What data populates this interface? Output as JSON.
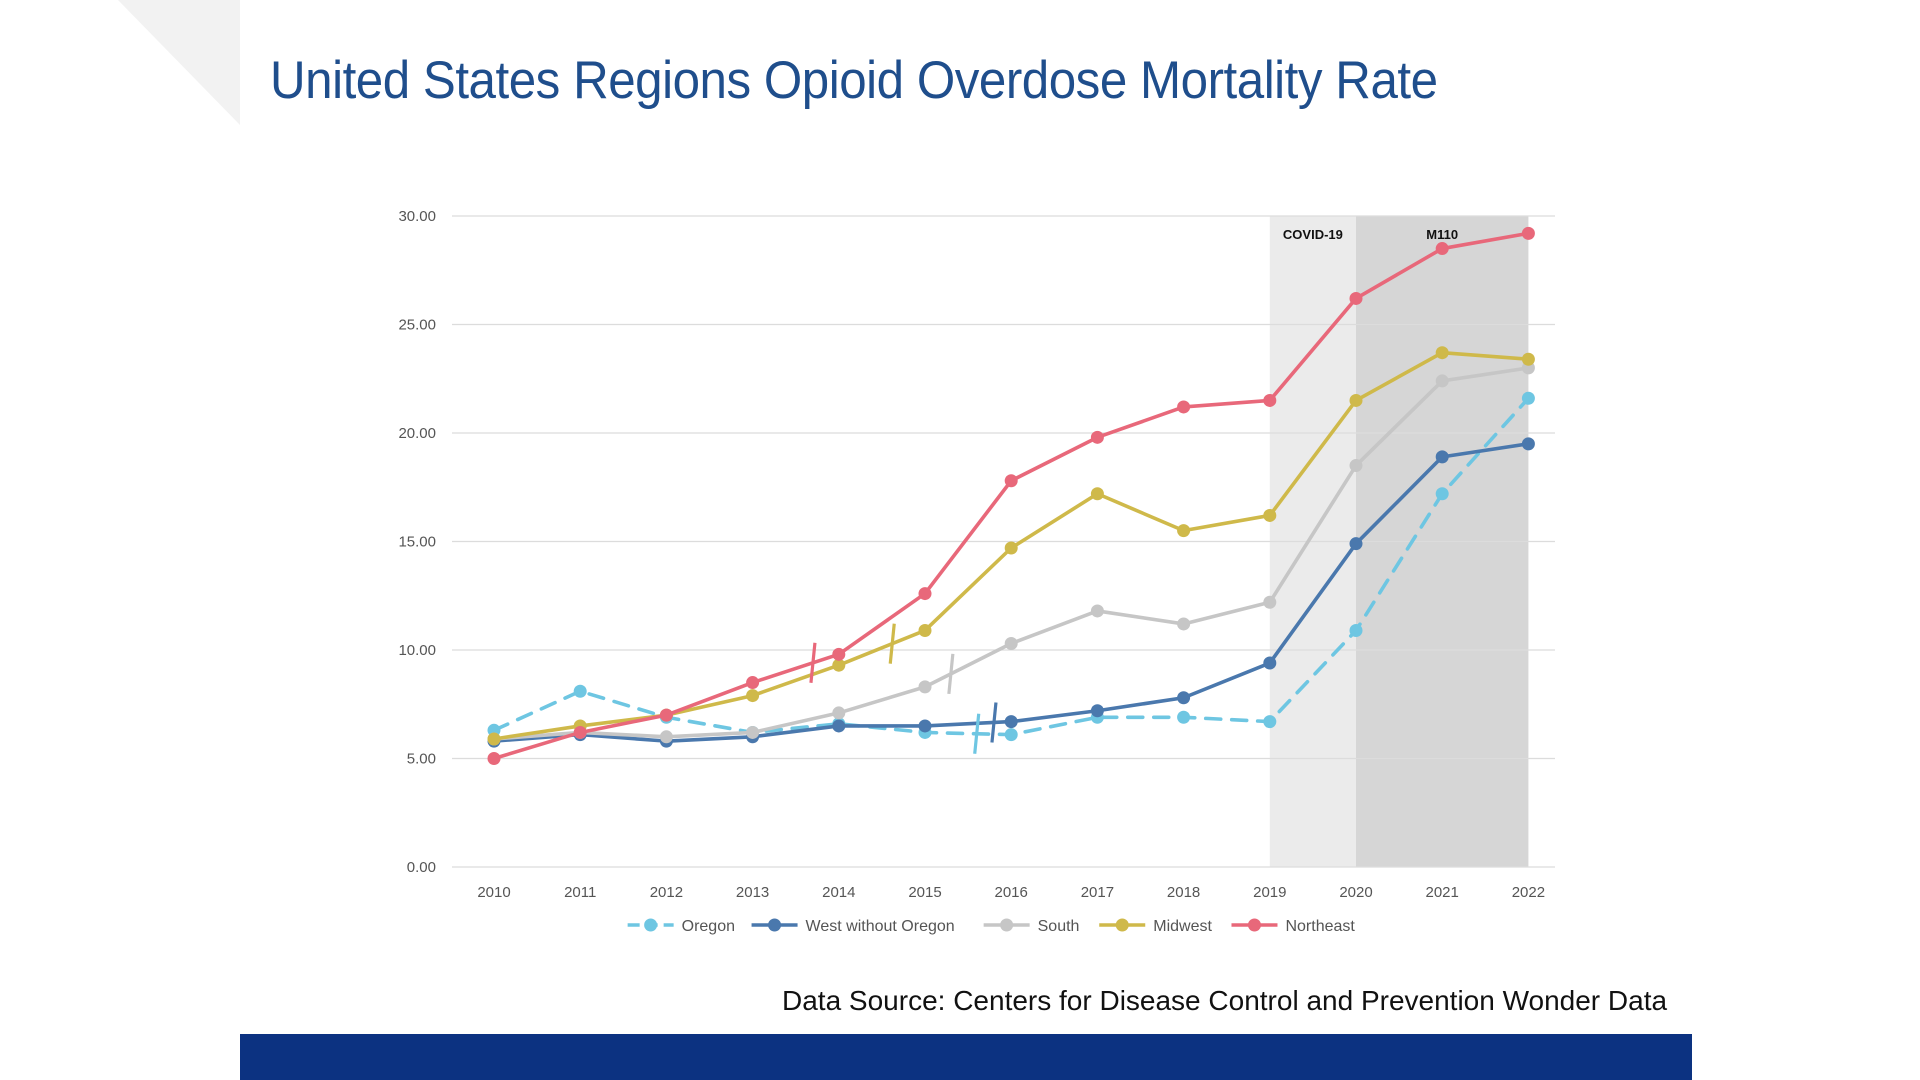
{
  "page": {
    "title": "United States Regions Opioid Overdose Mortality Rate"
  },
  "source_note": "Data Source: Centers for Disease Control and Prevention Wonder Data",
  "colors": {
    "title": "#1f4e8c",
    "footer_bar": "#0c3281",
    "band_covid": "#ebebeb",
    "band_m110": "#d6d6d6"
  },
  "chart_data": {
    "type": "line",
    "title": "",
    "xlabel": "",
    "ylabel": "",
    "x": [
      "2010",
      "2011",
      "2012",
      "2013",
      "2014",
      "2015",
      "2016",
      "2017",
      "2018",
      "2019",
      "2020",
      "2021",
      "2022"
    ],
    "ylim": [
      0,
      30
    ],
    "yticks": [
      "0.00",
      "5.00",
      "10.00",
      "15.00",
      "20.00",
      "25.00",
      "30.00"
    ],
    "grid": true,
    "legend": "bottom",
    "series": [
      {
        "name": "Oregon",
        "color": "#6ec6e2",
        "dashed": true,
        "values": [
          6.3,
          8.1,
          6.9,
          6.2,
          6.6,
          6.2,
          6.1,
          6.9,
          6.9,
          6.7,
          10.9,
          17.2,
          21.6
        ]
      },
      {
        "name": "West without Oregon",
        "color": "#4a78ad",
        "dashed": false,
        "values": [
          5.8,
          6.1,
          5.8,
          6.0,
          6.5,
          6.5,
          6.7,
          7.2,
          7.8,
          9.4,
          14.9,
          18.9,
          19.5
        ]
      },
      {
        "name": "South",
        "color": "#c6c6c6",
        "dashed": false,
        "values": [
          5.9,
          6.2,
          6.0,
          6.2,
          7.1,
          8.3,
          10.3,
          11.8,
          11.2,
          12.2,
          18.5,
          22.4,
          23.0
        ]
      },
      {
        "name": "Midwest",
        "color": "#cfb94a",
        "dashed": false,
        "values": [
          5.9,
          6.5,
          7.0,
          7.9,
          9.3,
          10.9,
          14.7,
          17.2,
          15.5,
          16.2,
          21.5,
          23.7,
          23.4
        ]
      },
      {
        "name": "Northeast",
        "color": "#e8687a",
        "dashed": false,
        "values": [
          5.0,
          6.2,
          7.0,
          8.5,
          9.8,
          12.6,
          17.8,
          19.8,
          21.2,
          21.5,
          26.2,
          28.5,
          29.2
        ]
      }
    ],
    "shaded_regions": [
      {
        "label": "COVID-19",
        "from": "2019",
        "to": "2020"
      },
      {
        "label": "M110",
        "from": "2020",
        "to": "2022"
      }
    ],
    "break_marks": [
      {
        "series": "Northeast",
        "x": 3.7
      },
      {
        "series": "Midwest",
        "x": 4.62
      },
      {
        "series": "South",
        "x": 5.3
      },
      {
        "series": "West without Oregon",
        "x": 5.8
      },
      {
        "series": "Oregon",
        "x": 5.6
      }
    ]
  }
}
